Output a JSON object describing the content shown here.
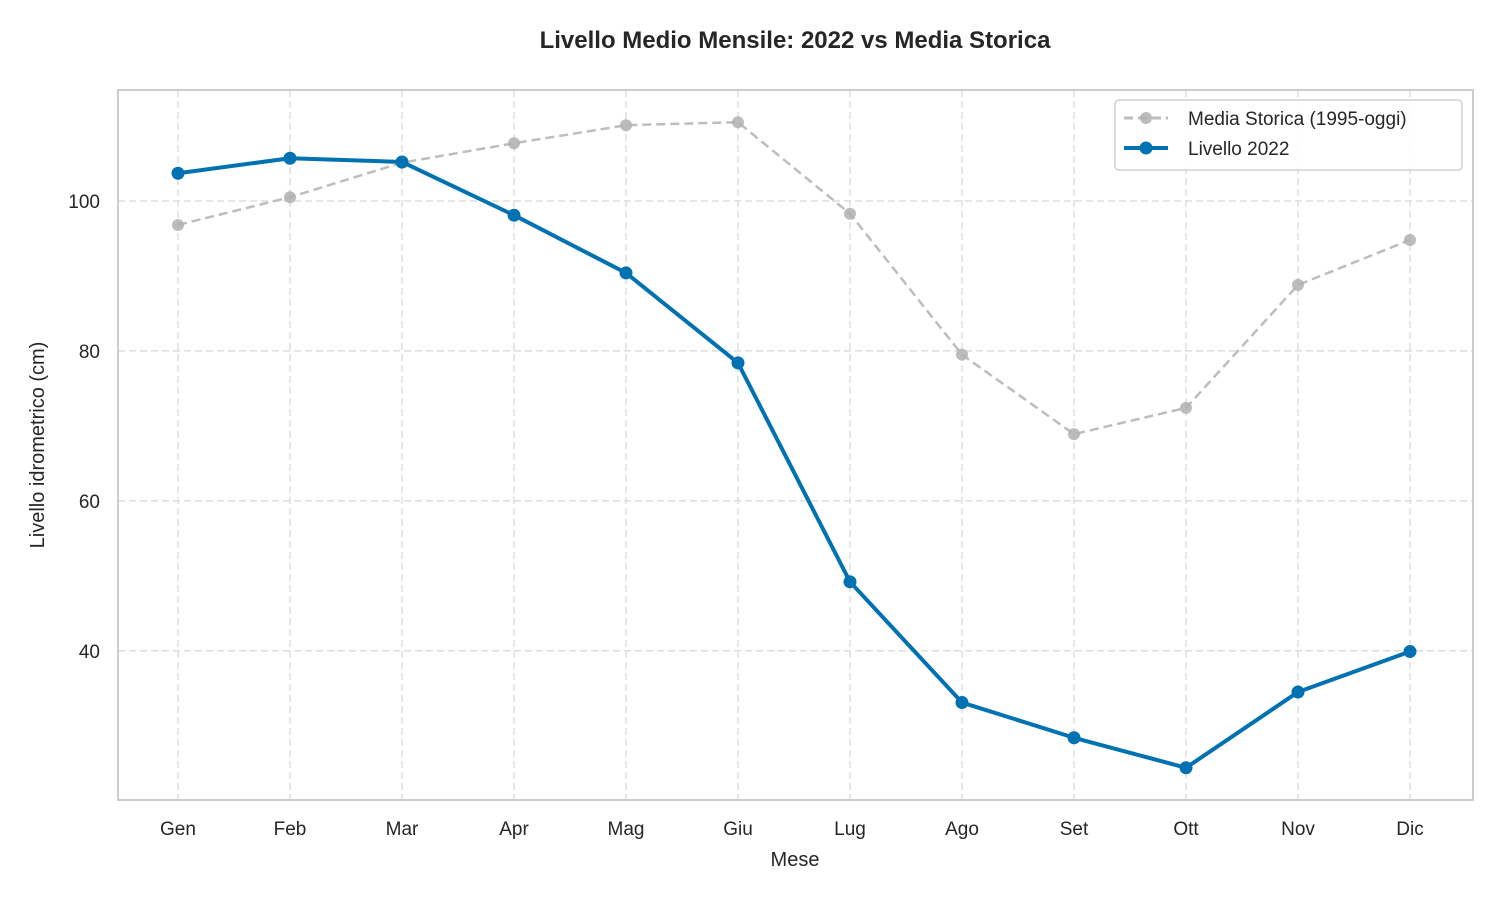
{
  "chart_data": {
    "type": "line",
    "title": "Livello Medio Mensile: 2022 vs Media Storica",
    "xlabel": "Mese",
    "ylabel": "Livello idrometrico (cm)",
    "categories": [
      "Gen",
      "Feb",
      "Mar",
      "Apr",
      "Mag",
      "Giu",
      "Lug",
      "Ago",
      "Set",
      "Ott",
      "Nov",
      "Dic"
    ],
    "ylim": [
      20.1,
      114.8
    ],
    "yticks": [
      40,
      60,
      80,
      100
    ],
    "grid": true,
    "legend_position": "top-right",
    "series": [
      {
        "name": "Media Storica (1995-oggi)",
        "color": "#bdbdbd",
        "style": "dashed",
        "values": [
          96.8,
          100.5,
          105.1,
          107.7,
          110.1,
          110.5,
          98.3,
          79.5,
          68.9,
          72.4,
          88.8,
          94.8
        ]
      },
      {
        "name": "Livello 2022",
        "color": "#0072b2",
        "style": "solid",
        "values": [
          103.7,
          105.7,
          105.2,
          98.1,
          90.4,
          78.4,
          49.2,
          33.1,
          28.4,
          24.4,
          34.5,
          39.9
        ]
      }
    ]
  }
}
